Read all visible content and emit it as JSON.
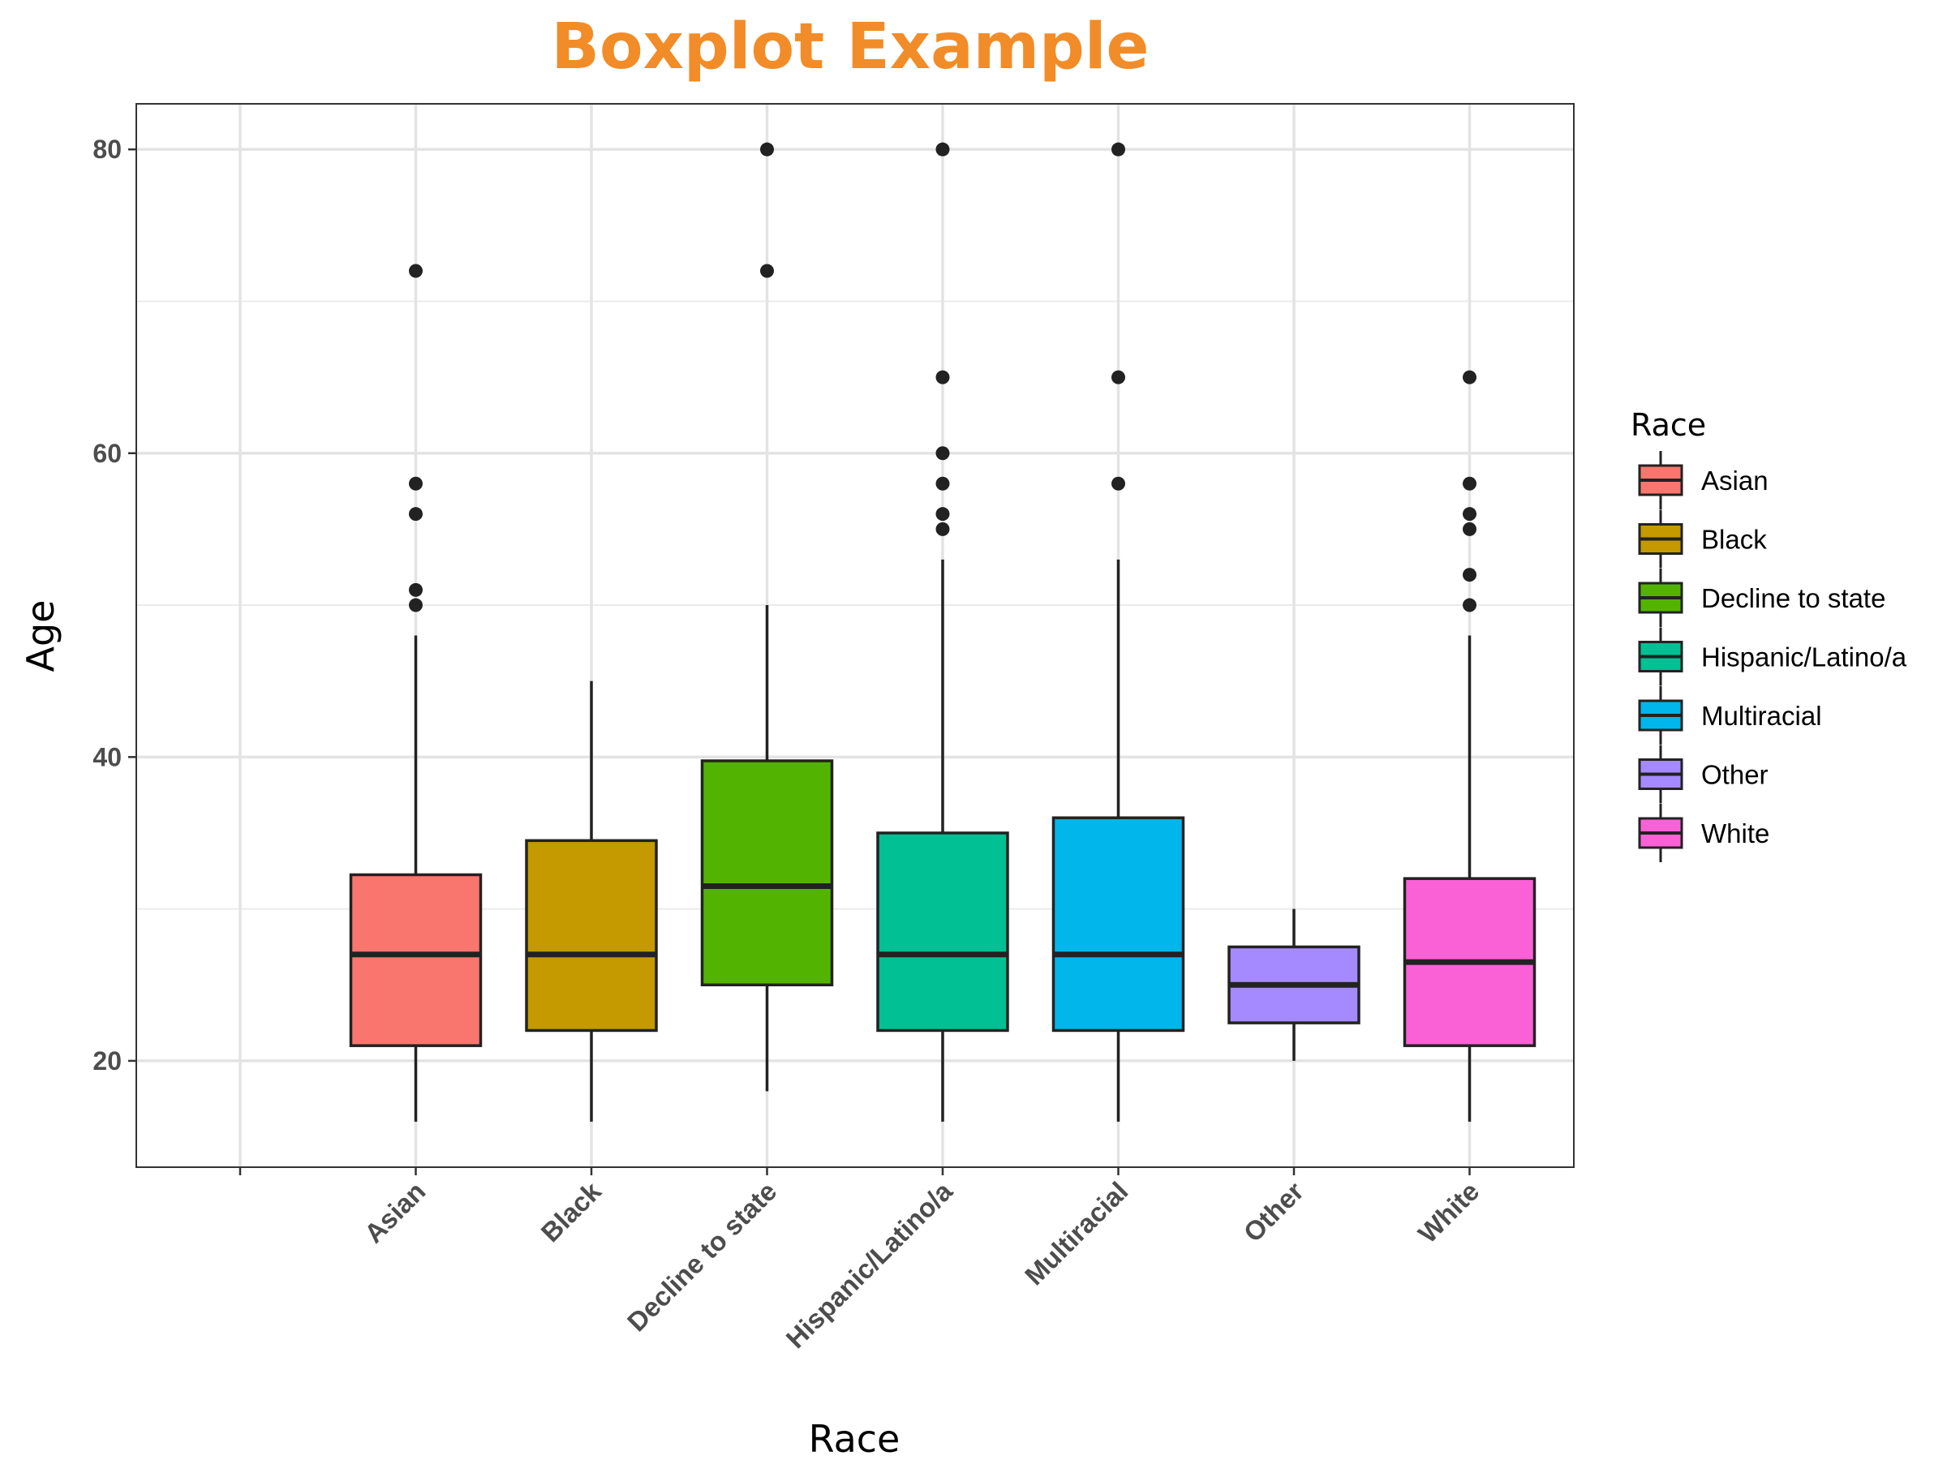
{
  "chart_data": {
    "type": "boxplot",
    "title": "Boxplot Example",
    "title_color": "#F28C28",
    "xlabel": "Race",
    "ylabel": "Age",
    "ylim": [
      13,
      83
    ],
    "yticks": [
      20,
      40,
      60,
      80
    ],
    "grid": true,
    "legend": {
      "title": "Race",
      "position": "right"
    },
    "categories": [
      "Asian",
      "Black",
      "Decline to state",
      "Hispanic/Latino/a",
      "Multiracial",
      "Other",
      "White"
    ],
    "series": [
      {
        "name": "Asian",
        "color": "#F8766D",
        "whisker_low": 16,
        "q1": 21,
        "median": 27,
        "q3": 32.25,
        "whisker_high": 48,
        "outliers": [
          50,
          51,
          56,
          58,
          72
        ]
      },
      {
        "name": "Black",
        "color": "#C49A00",
        "whisker_low": 16,
        "q1": 22,
        "median": 27,
        "q3": 34.5,
        "whisker_high": 45,
        "outliers": []
      },
      {
        "name": "Decline to state",
        "color": "#53B400",
        "whisker_low": 18,
        "q1": 25,
        "median": 31.5,
        "q3": 39.75,
        "whisker_high": 50,
        "outliers": [
          72,
          80
        ]
      },
      {
        "name": "Hispanic/Latino/a",
        "color": "#00C094",
        "whisker_low": 16,
        "q1": 22,
        "median": 27,
        "q3": 35,
        "whisker_high": 53,
        "outliers": [
          55,
          56,
          58,
          60,
          65,
          80
        ]
      },
      {
        "name": "Multiracial",
        "color": "#00B6EB",
        "whisker_low": 16,
        "q1": 22,
        "median": 27,
        "q3": 36,
        "whisker_high": 53,
        "outliers": [
          58,
          65,
          80
        ]
      },
      {
        "name": "Other",
        "color": "#A58AFF",
        "whisker_low": 20,
        "q1": 22.5,
        "median": 25,
        "q3": 27.5,
        "whisker_high": 30,
        "outliers": []
      },
      {
        "name": "White",
        "color": "#FB61D7",
        "whisker_low": 16,
        "q1": 21,
        "median": 26.5,
        "q3": 32,
        "whisker_high": 48,
        "outliers": [
          50,
          52,
          55,
          56,
          58,
          65
        ]
      }
    ]
  }
}
